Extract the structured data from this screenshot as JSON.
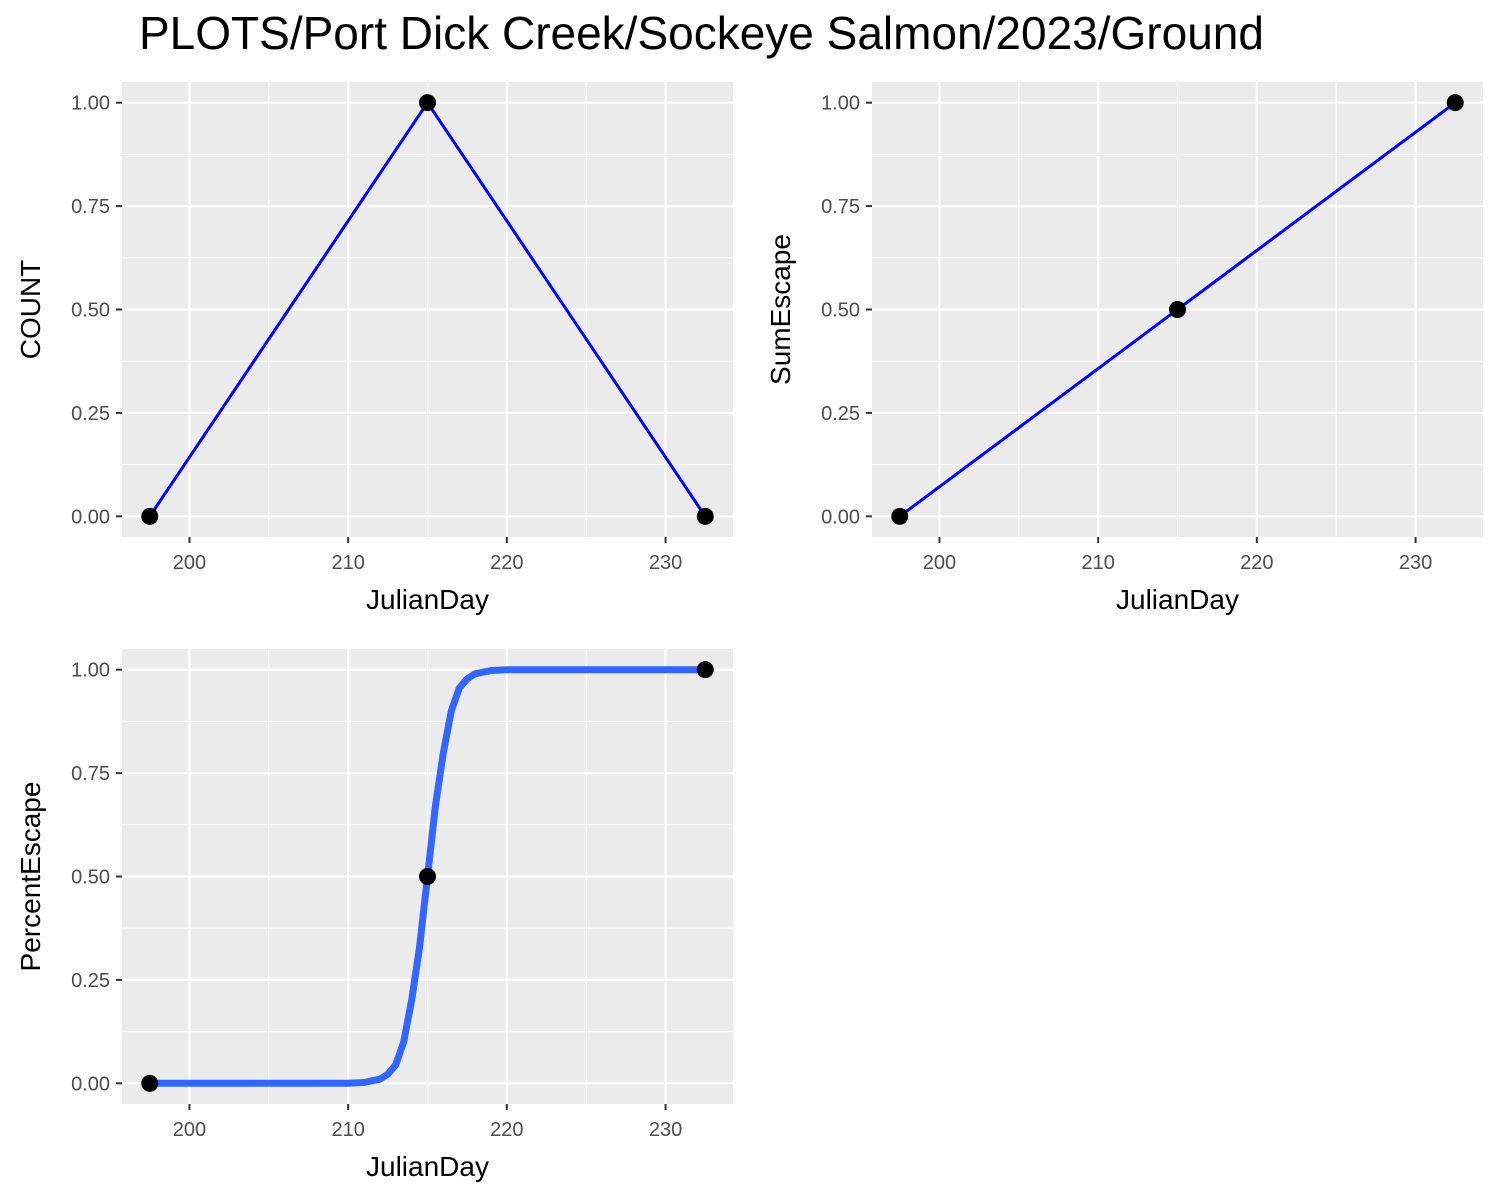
{
  "title": "PLOTS/Port Dick Creek/Sockeye Salmon/2023/Ground",
  "colors": {
    "panel_bg": "#ebebeb",
    "grid": "#ffffff",
    "line": "#0000ff",
    "smooth": "#3366ff",
    "point": "#000000",
    "tick_text": "#4d4d4d",
    "tick_mark": "#333333"
  },
  "chart_data": [
    {
      "type": "line",
      "xlabel": "JulianDay",
      "ylabel": "COUNT",
      "xlim": [
        195.75,
        234.25
      ],
      "ylim": [
        -0.05,
        1.05
      ],
      "xticks": [
        200,
        210,
        220,
        230
      ],
      "yticks": [
        0,
        0.25,
        0.5,
        0.75,
        1
      ],
      "ytick_labels": [
        "0.00",
        "0.25",
        "0.50",
        "0.75",
        "1.00"
      ],
      "grid": true,
      "series": [
        {
          "style": "line",
          "x": [
            197.5,
            215,
            232.5
          ],
          "y": [
            0,
            1,
            0
          ]
        },
        {
          "style": "points",
          "x": [
            197.5,
            215,
            232.5
          ],
          "y": [
            0,
            1,
            0
          ]
        }
      ]
    },
    {
      "type": "line",
      "xlabel": "JulianDay",
      "ylabel": "SumEscape",
      "xlim": [
        195.75,
        234.25
      ],
      "ylim": [
        -0.05,
        1.05
      ],
      "xticks": [
        200,
        210,
        220,
        230
      ],
      "yticks": [
        0,
        0.25,
        0.5,
        0.75,
        1
      ],
      "ytick_labels": [
        "0.00",
        "0.25",
        "0.50",
        "0.75",
        "1.00"
      ],
      "grid": true,
      "series": [
        {
          "style": "line",
          "x": [
            197.5,
            215,
            232.5
          ],
          "y": [
            0,
            0.5,
            1
          ]
        },
        {
          "style": "points",
          "x": [
            197.5,
            215,
            232.5
          ],
          "y": [
            0,
            0.5,
            1
          ]
        }
      ]
    },
    {
      "type": "line",
      "xlabel": "JulianDay",
      "ylabel": "PercentEscape",
      "xlim": [
        195.75,
        234.25
      ],
      "ylim": [
        -0.05,
        1.05
      ],
      "xticks": [
        200,
        210,
        220,
        230
      ],
      "yticks": [
        0,
        0.25,
        0.5,
        0.75,
        1
      ],
      "ytick_labels": [
        "0.00",
        "0.25",
        "0.50",
        "0.75",
        "1.00"
      ],
      "grid": true,
      "series": [
        {
          "style": "smooth",
          "x": [
            197.5,
            205,
            210,
            211,
            212,
            212.5,
            213,
            213.5,
            214,
            214.5,
            215,
            215.5,
            216,
            216.5,
            217,
            217.5,
            218,
            219,
            220,
            225,
            232.5
          ],
          "y": [
            0,
            0,
            0,
            0.002,
            0.01,
            0.022,
            0.045,
            0.1,
            0.2,
            0.33,
            0.5,
            0.67,
            0.8,
            0.9,
            0.955,
            0.978,
            0.99,
            0.998,
            1,
            1,
            1
          ]
        },
        {
          "style": "points",
          "x": [
            197.5,
            215,
            232.5
          ],
          "y": [
            0,
            0.5,
            1
          ]
        }
      ]
    }
  ]
}
